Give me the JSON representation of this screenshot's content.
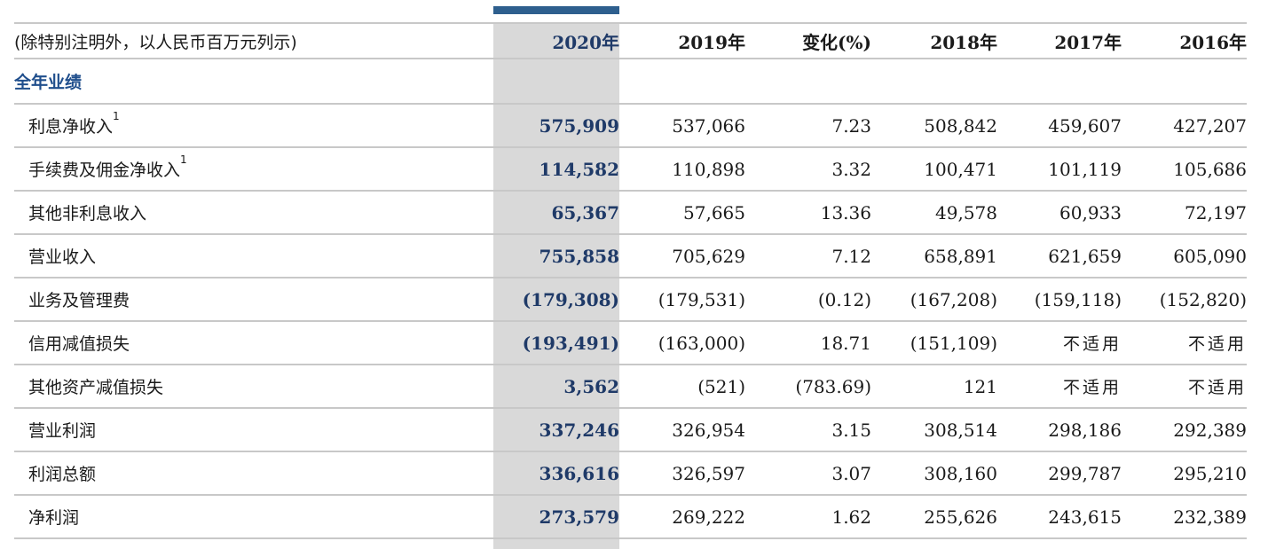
{
  "header": {
    "unit_note": "(除特别注明外，以人民币百万元列示)",
    "columns": [
      "2020年",
      "2019年",
      "变化(%)",
      "2018年",
      "2017年",
      "2016年"
    ]
  },
  "section_title": "全年业绩",
  "rows": [
    {
      "label": "利息净收入",
      "sup": "1",
      "values": [
        "575,909",
        "537,066",
        "7.23",
        "508,842",
        "459,607",
        "427,207"
      ]
    },
    {
      "label": "手续费及佣金净收入",
      "sup": "1",
      "values": [
        "114,582",
        "110,898",
        "3.32",
        "100,471",
        "101,119",
        "105,686"
      ]
    },
    {
      "label": "其他非利息收入",
      "values": [
        "65,367",
        "57,665",
        "13.36",
        "49,578",
        "60,933",
        "72,197"
      ]
    },
    {
      "label": "营业收入",
      "values": [
        "755,858",
        "705,629",
        "7.12",
        "658,891",
        "621,659",
        "605,090"
      ]
    },
    {
      "label": "业务及管理费",
      "values": [
        "(179,308)",
        "(179,531)",
        "(0.12)",
        "(167,208)",
        "(159,118)",
        "(152,820)"
      ]
    },
    {
      "label": "信用减值损失",
      "values": [
        "(193,491)",
        "(163,000)",
        "18.71",
        "(151,109)",
        "不适用",
        "不适用"
      ]
    },
    {
      "label": "其他资产减值损失",
      "values": [
        "3,562",
        "(521)",
        "(783.69)",
        "121",
        "不适用",
        "不适用"
      ]
    },
    {
      "label": "营业利润",
      "values": [
        "337,246",
        "326,954",
        "3.15",
        "308,514",
        "298,186",
        "292,389"
      ]
    },
    {
      "label": "利润总额",
      "values": [
        "336,616",
        "326,597",
        "3.07",
        "308,160",
        "299,787",
        "295,210"
      ]
    },
    {
      "label": "净利润",
      "values": [
        "273,579",
        "269,222",
        "1.62",
        "255,626",
        "243,615",
        "232,389"
      ]
    }
  ],
  "colors": {
    "highlight_bar": "#2e5f8e",
    "highlight_column": "#d9d9d9",
    "highlight_text": "#1f3a68",
    "section_title": "#1f4e8c"
  }
}
